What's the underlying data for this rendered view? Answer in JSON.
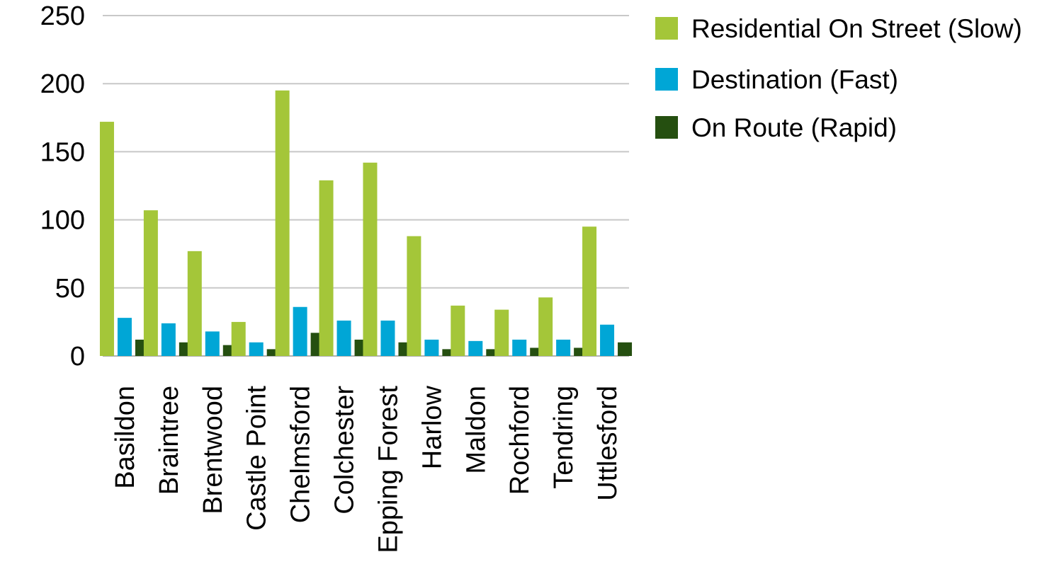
{
  "chart_data": {
    "type": "bar",
    "title": "",
    "xlabel": "",
    "ylabel": "",
    "ylim": [
      0,
      250
    ],
    "yticks": [
      0,
      50,
      100,
      150,
      200,
      250
    ],
    "grid": true,
    "legend_position": "top-right",
    "categories": [
      "Basildon",
      "Braintree",
      "Brentwood",
      "Castle Point",
      "Chelmsford",
      "Colchester",
      "Epping Forest",
      "Harlow",
      "Maldon",
      "Rochford",
      "Tendring",
      "Uttlesford"
    ],
    "series": [
      {
        "name": "Residential On Street (Slow)",
        "color": "#a4c639",
        "values": [
          172,
          107,
          77,
          25,
          195,
          129,
          142,
          88,
          37,
          34,
          43,
          95
        ]
      },
      {
        "name": "Destination (Fast)",
        "color": "#00a6d6",
        "values": [
          28,
          24,
          18,
          10,
          36,
          26,
          26,
          12,
          11,
          12,
          12,
          23
        ]
      },
      {
        "name": "On Route (Rapid)",
        "color": "#254f10",
        "values": [
          12,
          10,
          8,
          5,
          17,
          12,
          10,
          5,
          5,
          6,
          6,
          10
        ]
      }
    ]
  }
}
